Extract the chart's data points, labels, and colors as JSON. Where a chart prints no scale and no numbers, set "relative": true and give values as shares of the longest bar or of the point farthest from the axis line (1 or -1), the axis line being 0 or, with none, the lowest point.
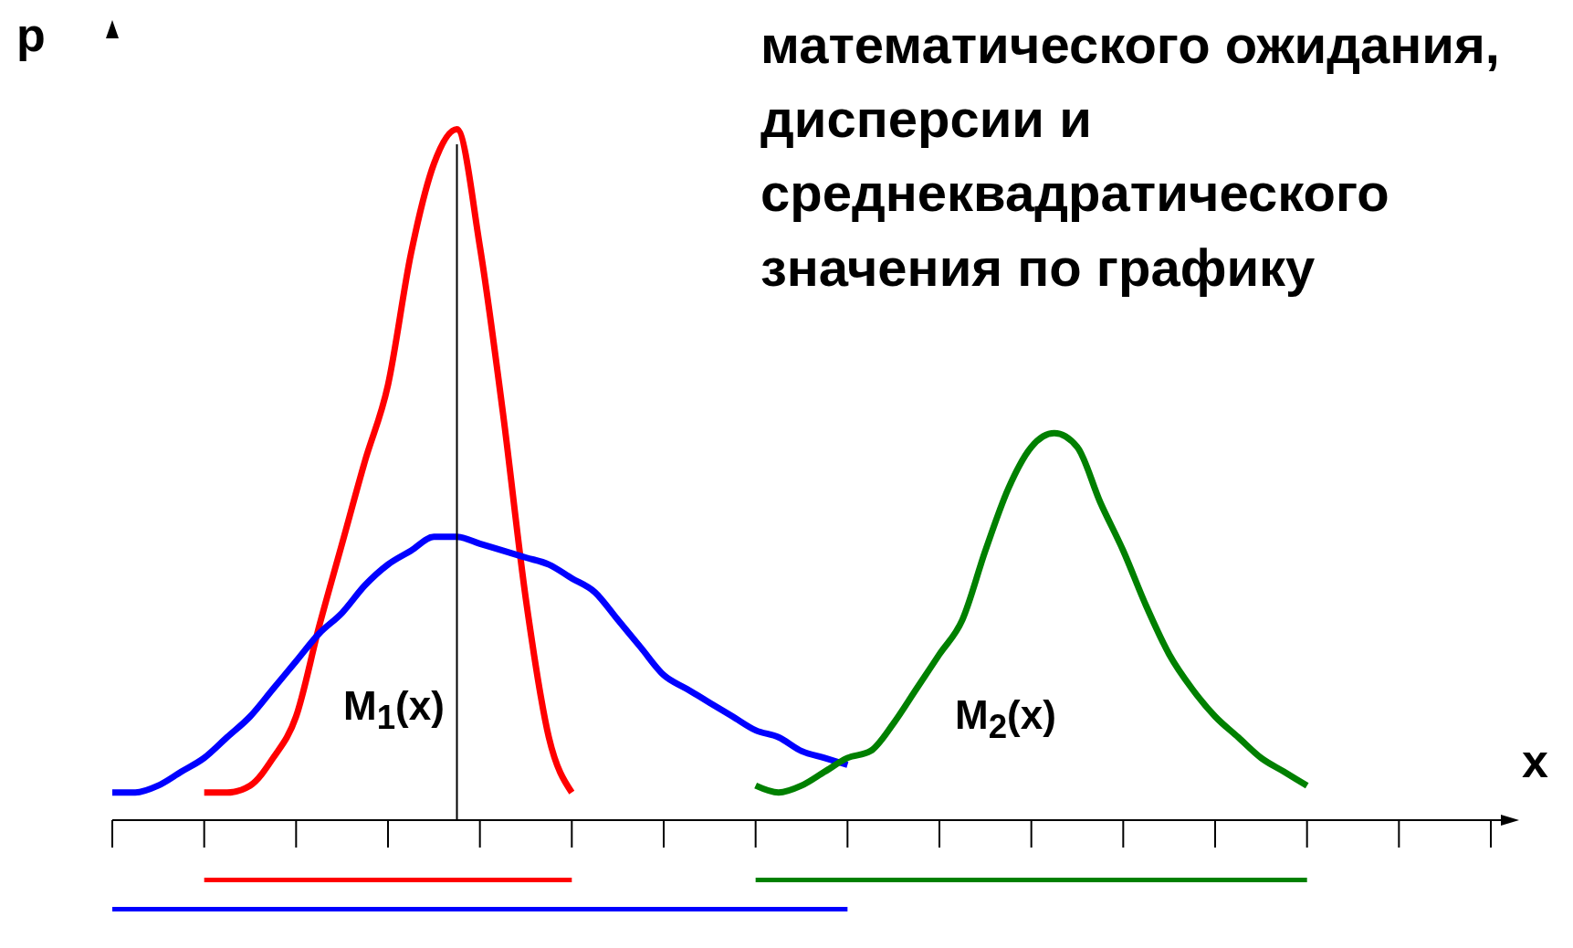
{
  "chart_data": {
    "type": "line",
    "relative": true,
    "title": "математического ожидания, дисперсии и среднеквадратического значения по графику",
    "xlabel": "x",
    "ylabel": "p",
    "categories": [
      null,
      null,
      null,
      null,
      null,
      null,
      null,
      null,
      null,
      null,
      null,
      null,
      null,
      null,
      null,
      null,
      null,
      null,
      null,
      null,
      null,
      null,
      null,
      null,
      null,
      null,
      null,
      null,
      null,
      null,
      null,
      null,
      null,
      null,
      null,
      null,
      null,
      null,
      null,
      null,
      null,
      null,
      null,
      null,
      null,
      null,
      null,
      null,
      null,
      null,
      null,
      null,
      null,
      null,
      null,
      null,
      null,
      null,
      null,
      null,
      null
    ],
    "series": [
      {
        "color": "#ff0000",
        "values": [
          null,
          null,
          null,
          null,
          0.04,
          0.04,
          0.05,
          0.09,
          0.15,
          0.28,
          0.4,
          0.52,
          0.63,
          0.82,
          0.95,
          1,
          0.83,
          0.59,
          0.32,
          0.12,
          0.04,
          null,
          null,
          null,
          null,
          null,
          null,
          null,
          null,
          null,
          null,
          null,
          null,
          null,
          null,
          null,
          null,
          null,
          null,
          null,
          null,
          null,
          null,
          null,
          null,
          null,
          null,
          null,
          null,
          null,
          null,
          null,
          null,
          null,
          null,
          null,
          null,
          null,
          null,
          null,
          null
        ]
      },
      {
        "color": "#0000ff",
        "values": [
          0.04,
          0.04,
          0.05,
          0.07,
          0.09,
          0.12,
          0.15,
          0.19,
          0.23,
          0.27,
          0.3,
          0.34,
          0.37,
          0.39,
          0.41,
          0.41,
          0.4,
          0.39,
          0.38,
          0.37,
          0.35,
          0.33,
          0.29,
          0.25,
          0.21,
          0.19,
          0.17,
          0.15,
          0.13,
          0.12,
          0.1,
          0.09,
          0.08,
          null,
          null,
          null,
          null,
          null,
          null,
          null,
          null,
          null,
          null,
          null,
          null,
          null,
          null,
          null,
          null,
          null,
          null,
          null,
          null,
          null,
          null,
          null,
          null,
          null,
          null,
          null,
          null
        ]
      },
      {
        "color": "#008000",
        "values": [
          null,
          null,
          null,
          null,
          null,
          null,
          null,
          null,
          null,
          null,
          null,
          null,
          null,
          null,
          null,
          null,
          null,
          null,
          null,
          null,
          null,
          null,
          null,
          null,
          null,
          null,
          null,
          null,
          0.05,
          0.04,
          0.05,
          0.07,
          0.09,
          0.1,
          0.14,
          0.19,
          0.24,
          0.29,
          0.39,
          0.48,
          0.54,
          0.56,
          0.54,
          0.46,
          0.39,
          0.31,
          0.24,
          0.19,
          0.15,
          0.12,
          0.09,
          0.07,
          0.05,
          null,
          null,
          null,
          null,
          null,
          null,
          null,
          null
        ]
      }
    ],
    "annotations": [
      "M$_{1}$(x)",
      "M$_{2}$(x)"
    ]
  }
}
